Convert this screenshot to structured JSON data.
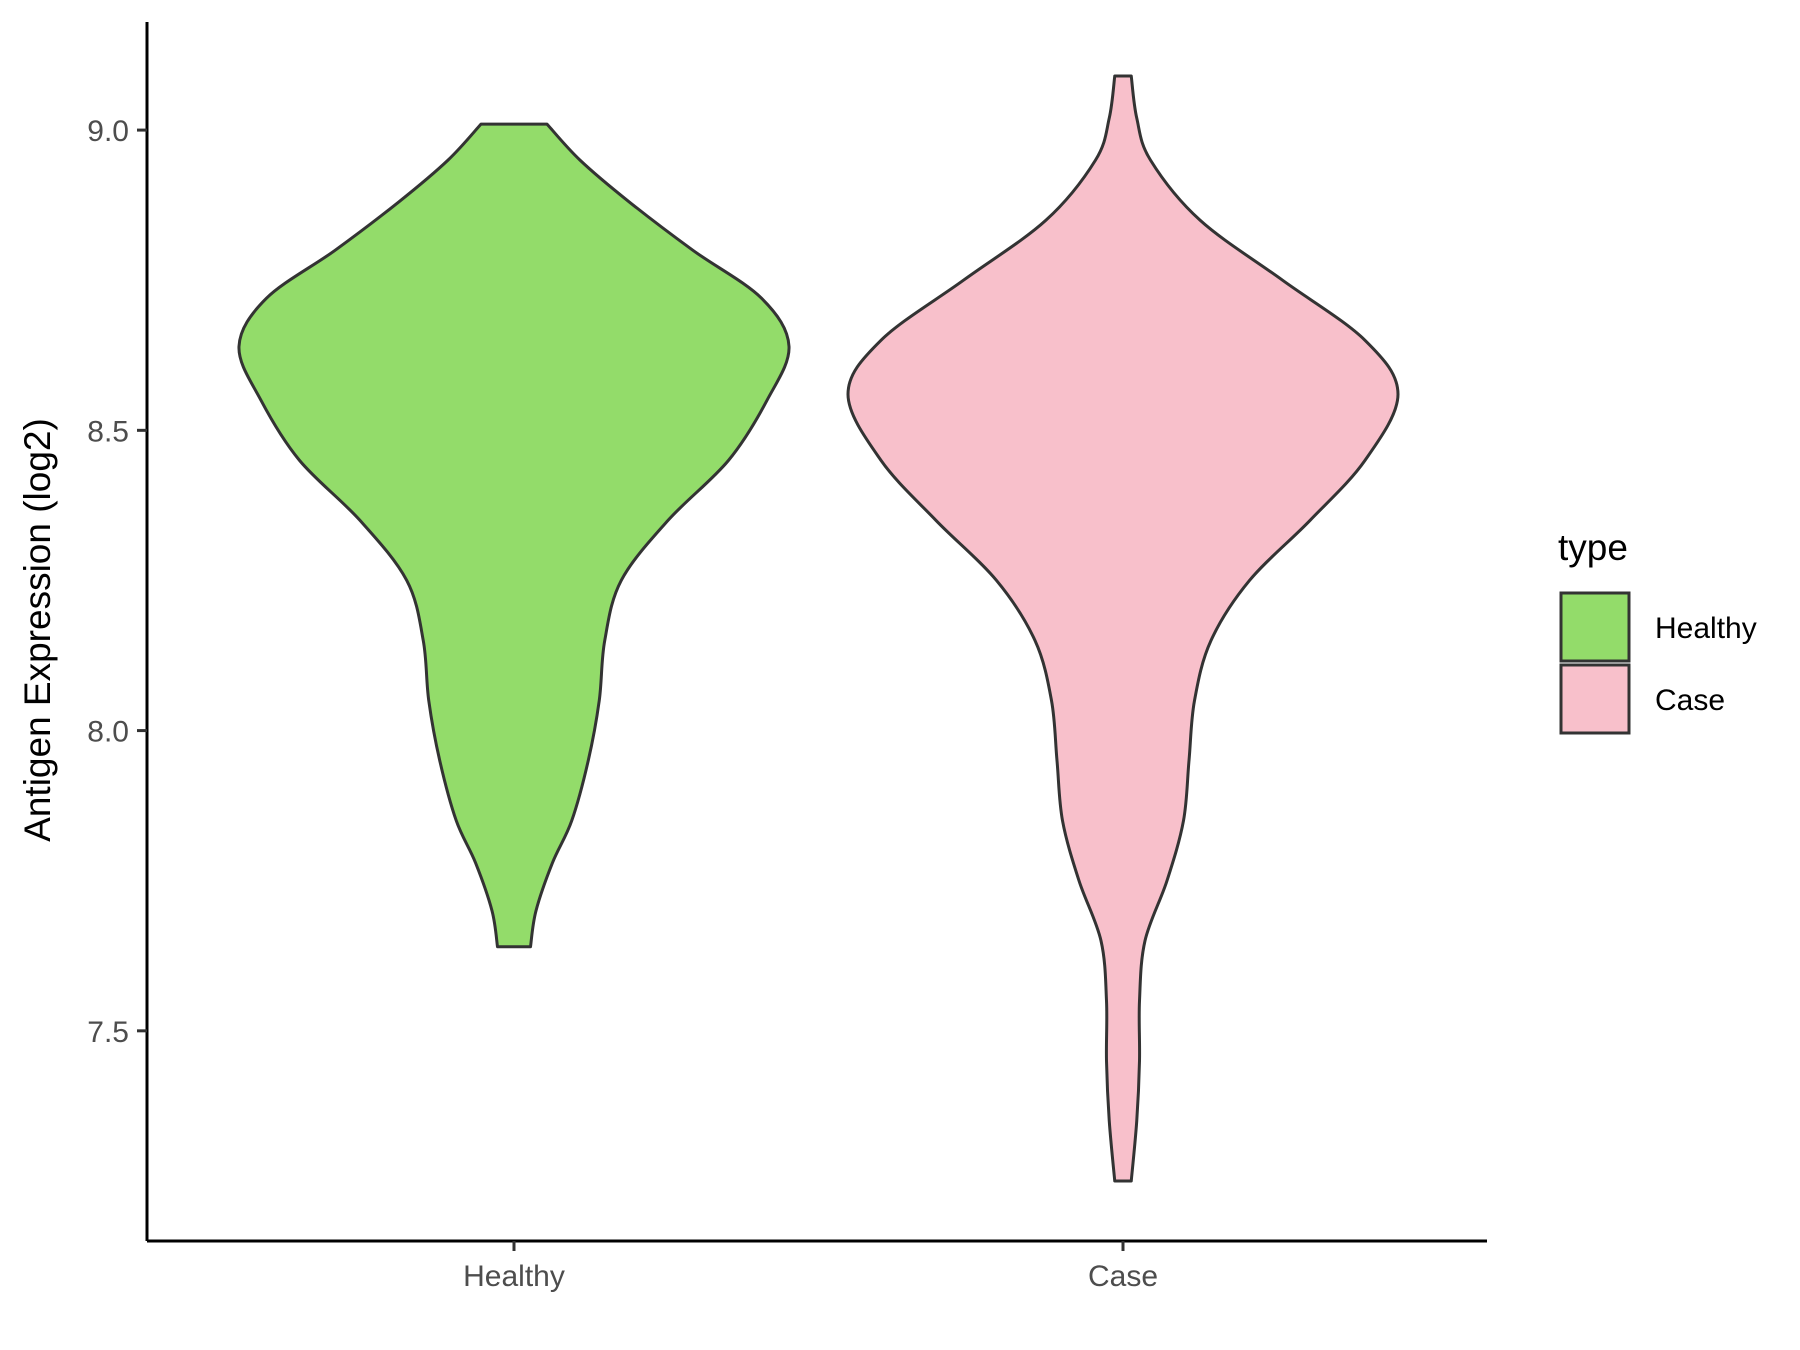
{
  "chart_data": {
    "type": "violin",
    "title": "",
    "xlabel": "",
    "ylabel": "Antigen Expression (log2)",
    "ylim": [
      7.15,
      9.18
    ],
    "yticks": [
      "7.5",
      "8.0",
      "8.5",
      "9.0"
    ],
    "grid": false,
    "categories": [
      "Healthy",
      "Case"
    ],
    "legend": {
      "title": "type",
      "position": "right",
      "entries": [
        "Healthy",
        "Case"
      ]
    },
    "series": [
      {
        "name": "Healthy",
        "color": "#93DC6A",
        "y_min": 7.64,
        "y_max": 9.01,
        "density_profile": [
          [
            7.64,
            0.06
          ],
          [
            7.7,
            0.08
          ],
          [
            7.78,
            0.14
          ],
          [
            7.85,
            0.21
          ],
          [
            7.95,
            0.27
          ],
          [
            8.05,
            0.31
          ],
          [
            8.15,
            0.33
          ],
          [
            8.25,
            0.39
          ],
          [
            8.35,
            0.56
          ],
          [
            8.45,
            0.78
          ],
          [
            8.55,
            0.92
          ],
          [
            8.64,
            1.0
          ],
          [
            8.72,
            0.9
          ],
          [
            8.8,
            0.65
          ],
          [
            8.88,
            0.42
          ],
          [
            8.95,
            0.24
          ],
          [
            9.01,
            0.12
          ]
        ]
      },
      {
        "name": "Case",
        "color": "#F8C0CB",
        "y_min": 7.25,
        "y_max": 9.09,
        "density_profile": [
          [
            7.25,
            0.03
          ],
          [
            7.35,
            0.05
          ],
          [
            7.45,
            0.06
          ],
          [
            7.55,
            0.06
          ],
          [
            7.65,
            0.08
          ],
          [
            7.75,
            0.16
          ],
          [
            7.85,
            0.22
          ],
          [
            7.95,
            0.24
          ],
          [
            8.05,
            0.26
          ],
          [
            8.15,
            0.32
          ],
          [
            8.25,
            0.46
          ],
          [
            8.35,
            0.68
          ],
          [
            8.45,
            0.88
          ],
          [
            8.56,
            1.0
          ],
          [
            8.65,
            0.88
          ],
          [
            8.75,
            0.58
          ],
          [
            8.85,
            0.28
          ],
          [
            8.95,
            0.1
          ],
          [
            9.02,
            0.05
          ],
          [
            9.09,
            0.03
          ]
        ]
      }
    ]
  }
}
